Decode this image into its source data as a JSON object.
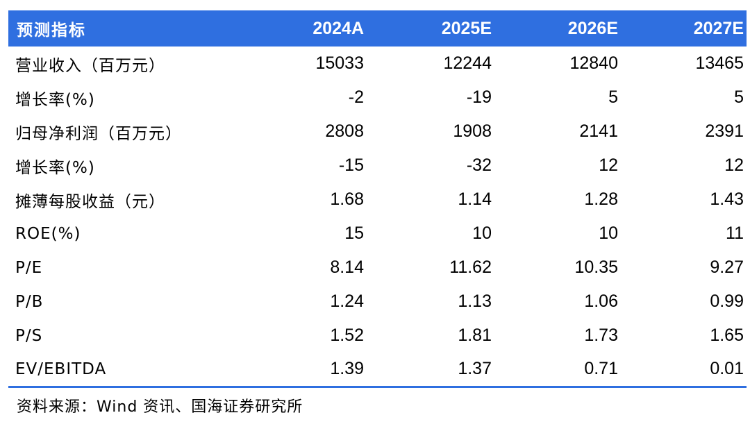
{
  "table": {
    "header": [
      "预测指标",
      "2024A",
      "2025E",
      "2026E",
      "2027E"
    ],
    "rows": [
      {
        "label": "营业收入（百万元）",
        "values": [
          "15033",
          "12244",
          "12840",
          "13465"
        ]
      },
      {
        "label": "增长率(%)",
        "values": [
          "-2",
          "-19",
          "5",
          "5"
        ]
      },
      {
        "label": "归母净利润（百万元）",
        "values": [
          "2808",
          "1908",
          "2141",
          "2391"
        ]
      },
      {
        "label": "增长率(%)",
        "values": [
          "-15",
          "-32",
          "12",
          "12"
        ]
      },
      {
        "label": "摊薄每股收益（元）",
        "values": [
          "1.68",
          "1.14",
          "1.28",
          "1.43"
        ]
      },
      {
        "label": "ROE(%)",
        "values": [
          "15",
          "10",
          "10",
          "11"
        ]
      },
      {
        "label": "P/E",
        "values": [
          "8.14",
          "11.62",
          "10.35",
          "9.27"
        ]
      },
      {
        "label": "P/B",
        "values": [
          "1.24",
          "1.13",
          "1.06",
          "0.99"
        ]
      },
      {
        "label": "P/S",
        "values": [
          "1.52",
          "1.81",
          "1.73",
          "1.65"
        ]
      },
      {
        "label": "EV/EBITDA",
        "values": [
          "1.39",
          "1.37",
          "0.71",
          "0.01"
        ]
      }
    ],
    "source": "资料来源：Wind 资讯、国海证券研究所"
  },
  "colors": {
    "header_bg": "#2f6fe0",
    "header_text": "#ffffff",
    "rule": "#2f6fe0"
  }
}
